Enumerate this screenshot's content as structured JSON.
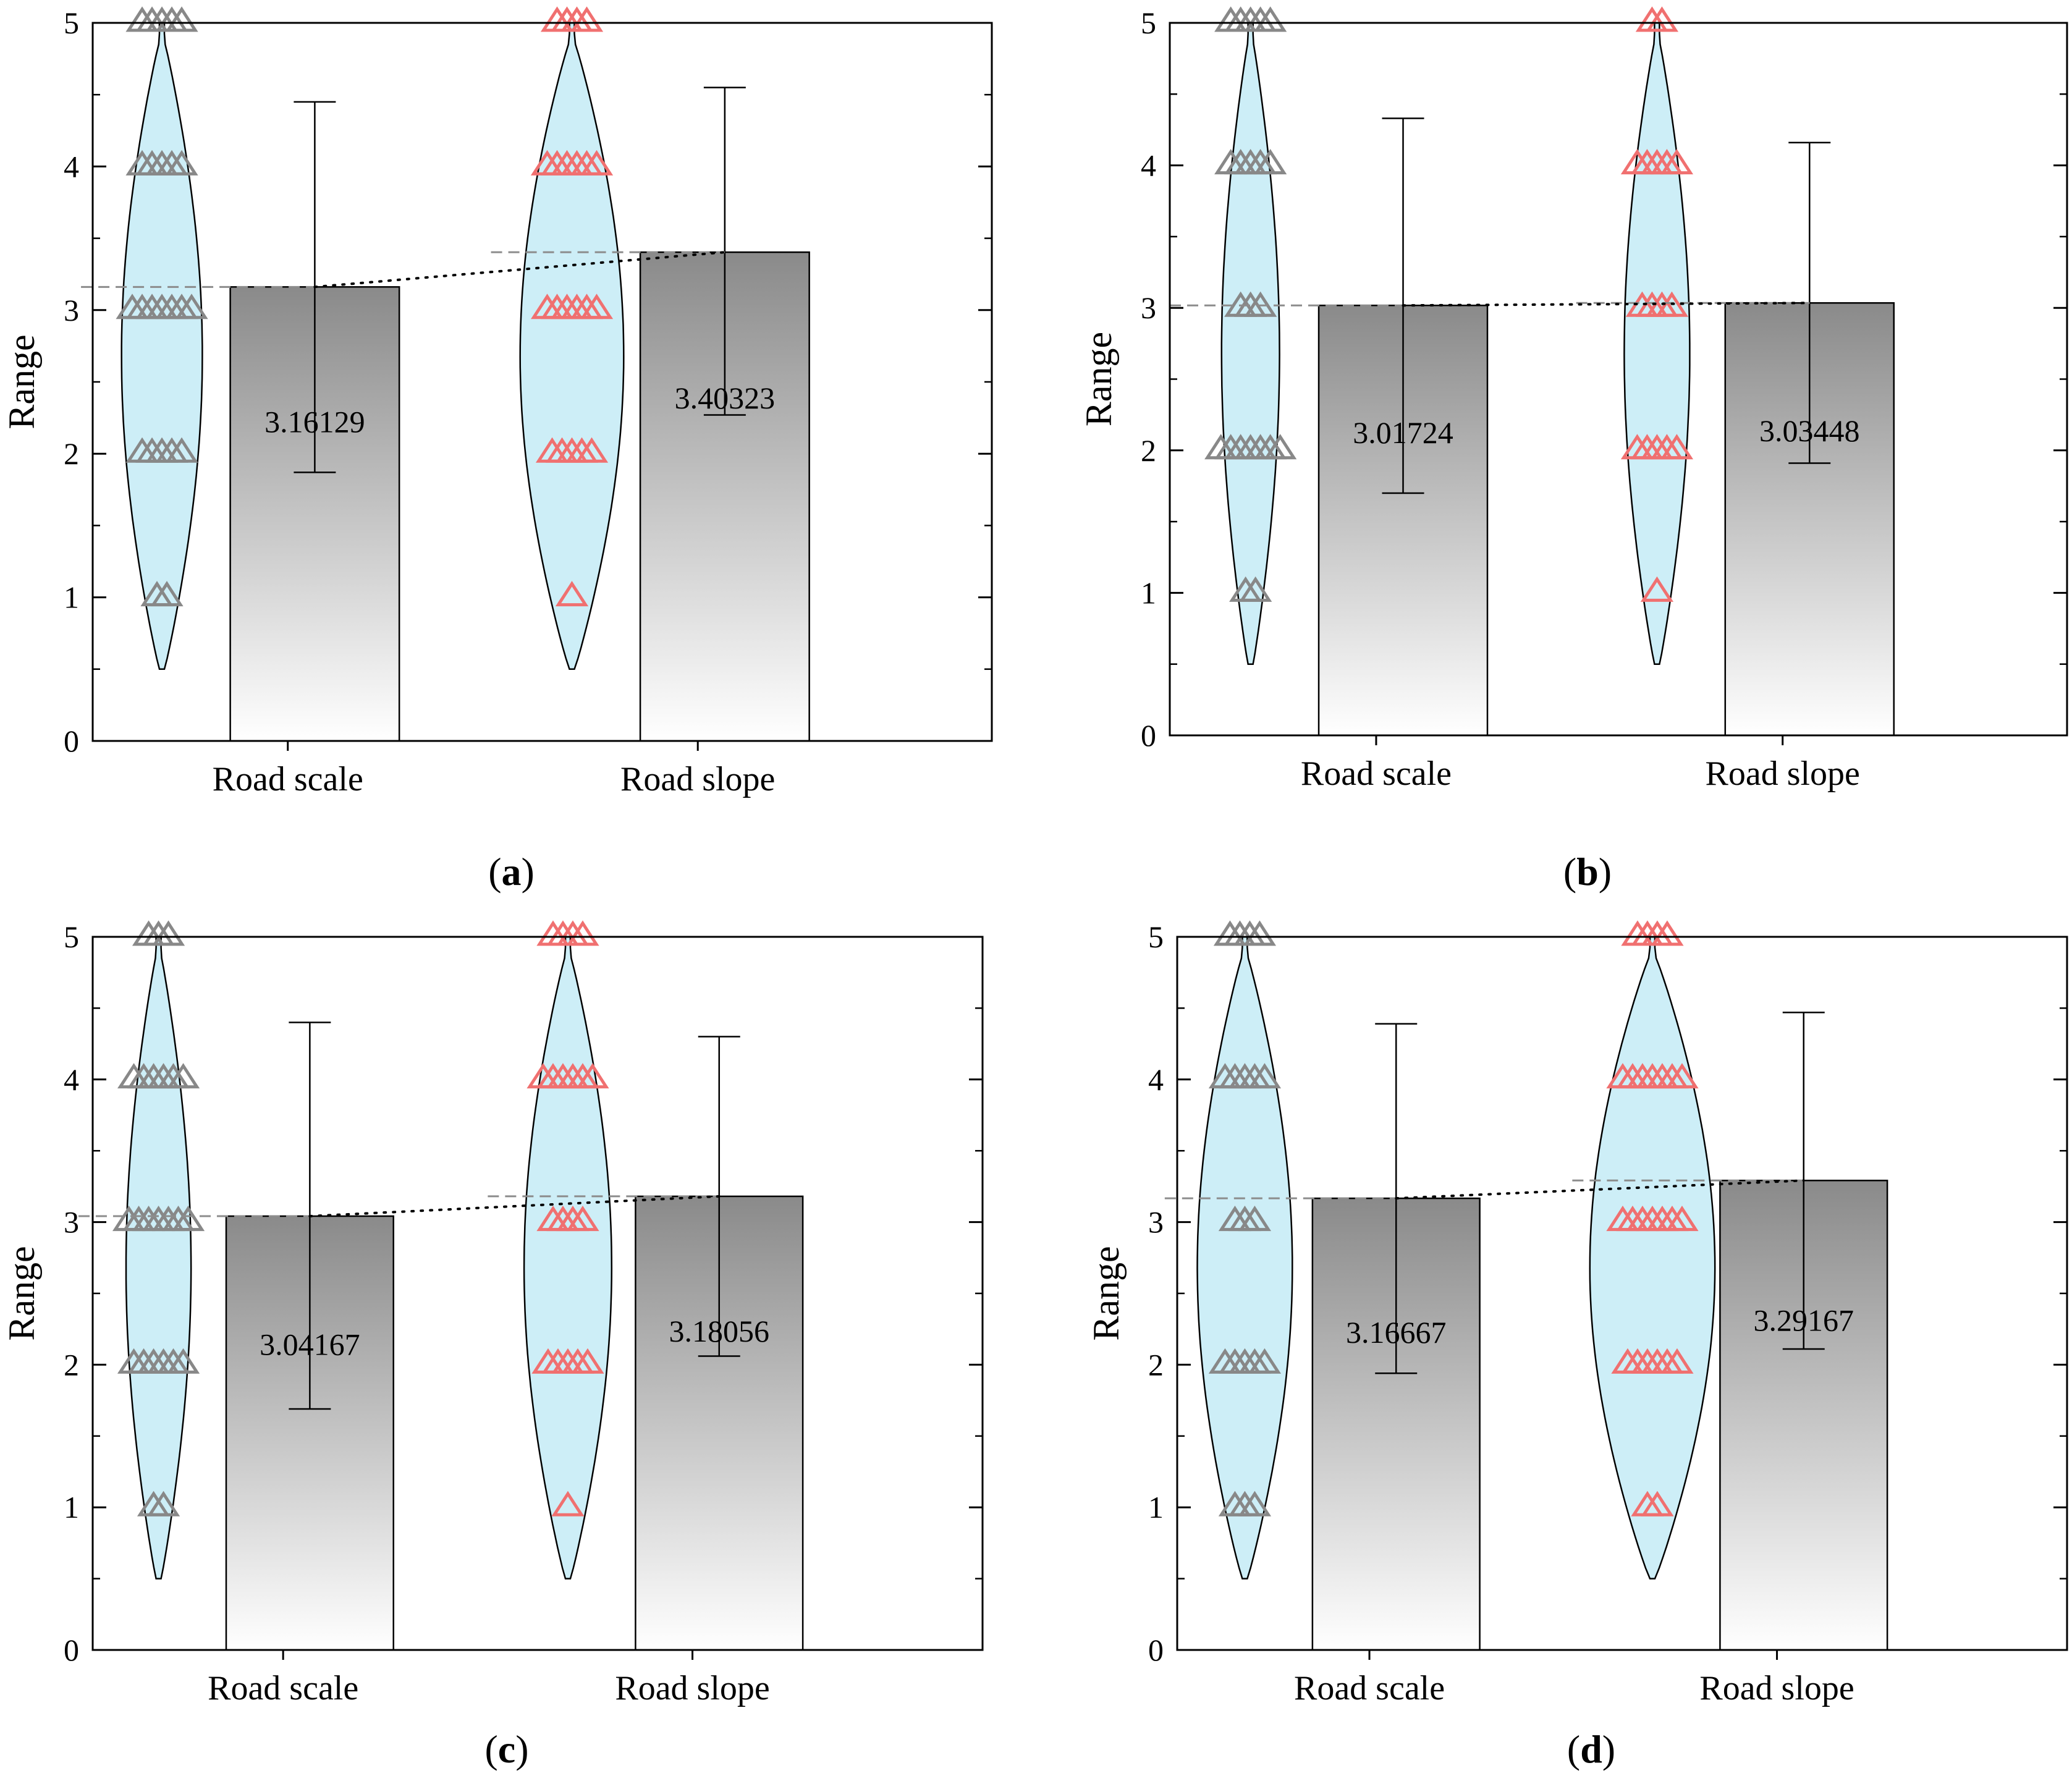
{
  "colors": {
    "violin_fill": "#cdeef7",
    "violin_stroke": "#000000",
    "marker_scale": "#888888",
    "marker_slope": "#f07070",
    "bar_top": "#8a8a8a",
    "bar_bottom": "#ffffff",
    "mean_line": "#8c8c8c",
    "trend_line": "#000000"
  },
  "chart_data": [
    {
      "id": "a",
      "caption": "a",
      "type": "bar",
      "ylabel": "Range",
      "ylim": [
        0,
        5
      ],
      "yticks": [
        "0",
        "1",
        "2",
        "3",
        "4",
        "5"
      ],
      "categories": [
        "Road scale",
        "Road slope"
      ],
      "means": [
        3.16129,
        3.40323
      ],
      "value_labels": [
        "3.16129",
        "3.40323"
      ],
      "error_bars": [
        [
          1.87,
          4.45
        ],
        [
          2.27,
          4.55
        ]
      ],
      "violins": [
        {
          "min": 0.5,
          "max": 5.0,
          "max_width": 0.5,
          "markers": [
            {
              "y": 1,
              "count": 2
            },
            {
              "y": 2,
              "count": 5
            },
            {
              "y": 3,
              "count": 7
            },
            {
              "y": 4,
              "count": 5
            },
            {
              "y": 5,
              "count": 5
            }
          ]
        },
        {
          "min": 0.5,
          "max": 5.0,
          "max_width": 0.65,
          "markers": [
            {
              "y": 1,
              "count": 1
            },
            {
              "y": 2,
              "count": 5
            },
            {
              "y": 3,
              "count": 6
            },
            {
              "y": 4,
              "count": 6
            },
            {
              "y": 5,
              "count": 4
            }
          ]
        }
      ]
    },
    {
      "id": "b",
      "caption": "b",
      "type": "bar",
      "ylabel": "Range",
      "ylim": [
        0,
        5
      ],
      "yticks": [
        "0",
        "1",
        "2",
        "3",
        "4",
        "5"
      ],
      "categories": [
        "Road scale",
        "Road slope"
      ],
      "means": [
        3.01724,
        3.03448
      ],
      "value_labels": [
        "3.01724",
        "3.03448"
      ],
      "error_bars": [
        [
          1.7,
          4.33
        ],
        [
          1.91,
          4.16
        ]
      ],
      "violins": [
        {
          "min": 0.5,
          "max": 5.0,
          "max_width": 0.35,
          "markers": [
            {
              "y": 1,
              "count": 2
            },
            {
              "y": 2,
              "count": 7
            },
            {
              "y": 3,
              "count": 3
            },
            {
              "y": 4,
              "count": 5
            },
            {
              "y": 5,
              "count": 5
            }
          ]
        },
        {
          "min": 0.5,
          "max": 5.0,
          "max_width": 0.4,
          "markers": [
            {
              "y": 1,
              "count": 1
            },
            {
              "y": 2,
              "count": 5
            },
            {
              "y": 3,
              "count": 4
            },
            {
              "y": 4,
              "count": 5
            },
            {
              "y": 5,
              "count": 2
            }
          ]
        }
      ]
    },
    {
      "id": "c",
      "caption": "c",
      "type": "bar",
      "ylabel": "Range",
      "ylim": [
        0,
        5
      ],
      "yticks": [
        "0",
        "1",
        "2",
        "3",
        "4",
        "5"
      ],
      "categories": [
        "Road scale",
        "Road slope"
      ],
      "means": [
        3.04167,
        3.18056
      ],
      "value_labels": [
        "3.04167",
        "3.18056"
      ],
      "error_bars": [
        [
          1.69,
          4.4
        ],
        [
          2.06,
          4.3
        ]
      ],
      "violins": [
        {
          "min": 0.5,
          "max": 5.0,
          "max_width": 0.4,
          "markers": [
            {
              "y": 1,
              "count": 2
            },
            {
              "y": 2,
              "count": 6
            },
            {
              "y": 3,
              "count": 7
            },
            {
              "y": 4,
              "count": 6
            },
            {
              "y": 5,
              "count": 3
            }
          ]
        },
        {
          "min": 0.5,
          "max": 5.0,
          "max_width": 0.55,
          "markers": [
            {
              "y": 1,
              "count": 1
            },
            {
              "y": 2,
              "count": 5
            },
            {
              "y": 3,
              "count": 4
            },
            {
              "y": 4,
              "count": 6
            },
            {
              "y": 5,
              "count": 4
            }
          ]
        }
      ]
    },
    {
      "id": "d",
      "caption": "d",
      "type": "bar",
      "ylabel": "Range",
      "ylim": [
        0,
        5
      ],
      "yticks": [
        "0",
        "1",
        "2",
        "3",
        "4",
        "5"
      ],
      "categories": [
        "Road scale",
        "Road slope"
      ],
      "means": [
        3.16667,
        3.29167
      ],
      "value_labels": [
        "3.16667",
        "3.29167"
      ],
      "error_bars": [
        [
          1.94,
          4.39
        ],
        [
          2.11,
          4.47
        ]
      ],
      "violins": [
        {
          "min": 0.5,
          "max": 5.0,
          "max_width": 0.6,
          "markers": [
            {
              "y": 1,
              "count": 3
            },
            {
              "y": 2,
              "count": 5
            },
            {
              "y": 3,
              "count": 3
            },
            {
              "y": 4,
              "count": 5
            },
            {
              "y": 5,
              "count": 4
            }
          ]
        },
        {
          "min": 0.5,
          "max": 5.0,
          "max_width": 0.8,
          "markers": [
            {
              "y": 1,
              "count": 2
            },
            {
              "y": 2,
              "count": 6
            },
            {
              "y": 3,
              "count": 7
            },
            {
              "y": 4,
              "count": 7
            },
            {
              "y": 5,
              "count": 4
            }
          ]
        }
      ]
    }
  ]
}
